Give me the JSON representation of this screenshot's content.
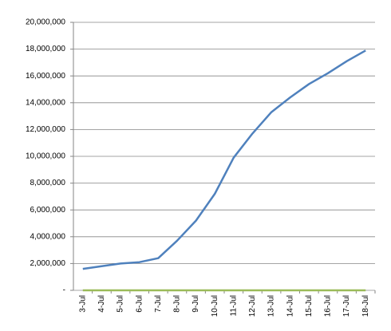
{
  "chart_data": {
    "type": "line",
    "categories": [
      "3-Jul",
      "4-Jul",
      "5-Jul",
      "6-Jul",
      "7-Jul",
      "8-Jul",
      "9-Jul",
      "10-Jul",
      "11-Jul",
      "12-Jul",
      "13-Jul",
      "14-Jul",
      "15-Jul",
      "16-Jul",
      "17-Jul",
      "18-Jul"
    ],
    "series": [
      {
        "color": "#4f81bd",
        "values": [
          1600000,
          1800000,
          2000000,
          2100000,
          2400000,
          3700000,
          5200000,
          7200000,
          9900000,
          11700000,
          13300000,
          14400000,
          15400000,
          16200000,
          17100000,
          17900000
        ]
      },
      {
        "color": "#9bbb59",
        "values": [
          0,
          0,
          0,
          0,
          0,
          0,
          0,
          0,
          0,
          0,
          0,
          0,
          0,
          0,
          0,
          0
        ]
      }
    ],
    "ylim": [
      0,
      20000000
    ],
    "yticks": [
      {
        "value": 0,
        "label": "-"
      },
      {
        "value": 2000000,
        "label": "2,000,000"
      },
      {
        "value": 4000000,
        "label": "4,000,000"
      },
      {
        "value": 6000000,
        "label": "6,000,000"
      },
      {
        "value": 8000000,
        "label": "8,000,000"
      },
      {
        "value": 10000000,
        "label": "10,000,000"
      },
      {
        "value": 12000000,
        "label": "12,000,000"
      },
      {
        "value": 14000000,
        "label": "14,000,000"
      },
      {
        "value": 16000000,
        "label": "16,000,000"
      },
      {
        "value": 18000000,
        "label": "18,000,000"
      },
      {
        "value": 20000000,
        "label": "20,000,000"
      }
    ],
    "grid": true
  }
}
